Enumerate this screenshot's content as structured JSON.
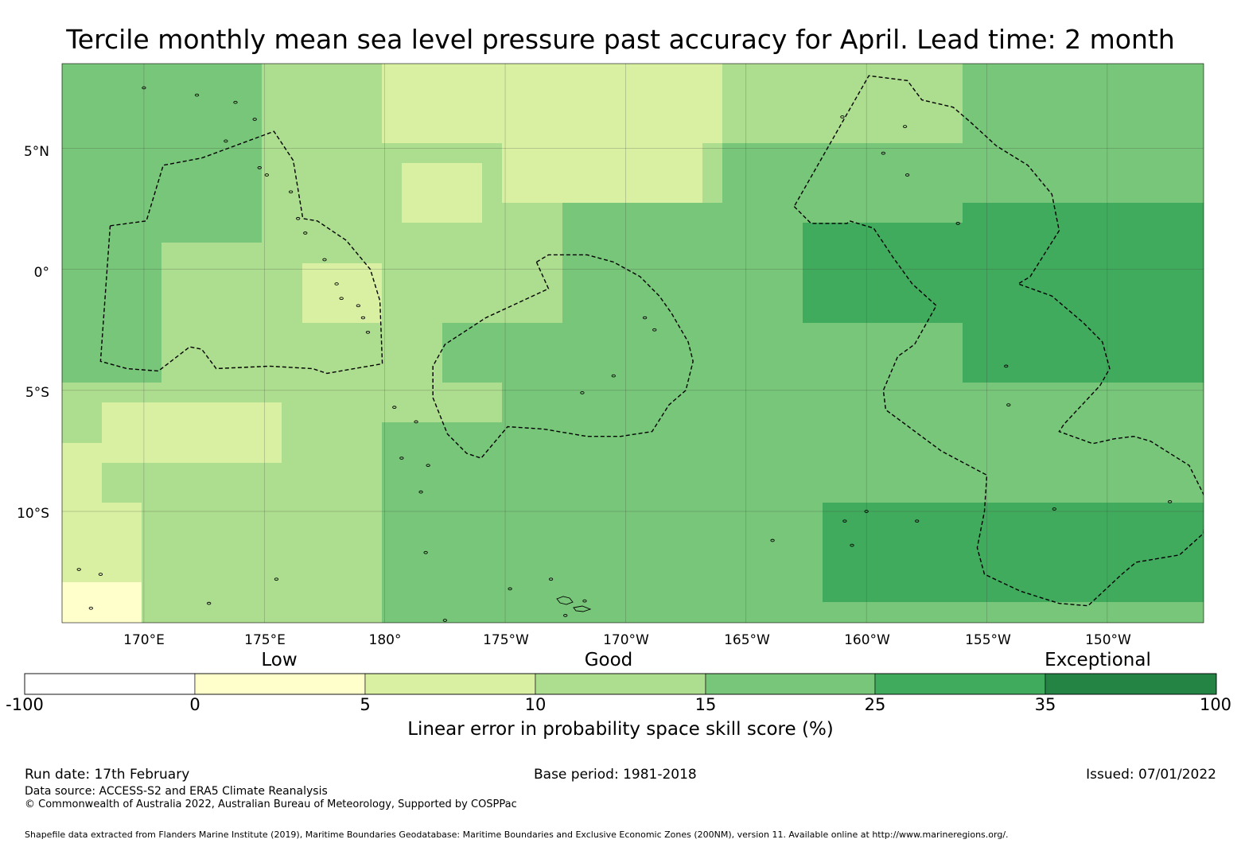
{
  "title": "Tercile monthly mean sea level pressure past accuracy for April. Lead time: 2 month",
  "map": {
    "lat_labels": [
      "5°N",
      "0°",
      "5°S",
      "10°S"
    ],
    "lon_labels": [
      "170°E",
      "175°E",
      "180°",
      "175°W",
      "170°W",
      "165°W",
      "160°W",
      "155°W",
      "150°W"
    ],
    "extent": {
      "lon_west": 166.6,
      "lon_east": 214.0,
      "lat_north": 8.5,
      "lat_south": -14.6
    }
  },
  "legend": {
    "categories": [
      "Low",
      "Good",
      "Exceptional"
    ],
    "ticks": [
      "-100",
      "0",
      "5",
      "10",
      "15",
      "25",
      "35",
      "100"
    ],
    "colors": [
      "#ffffff",
      "#ffffcc",
      "#d9f0a3",
      "#addd8e",
      "#78c679",
      "#41ab5d",
      "#238443"
    ],
    "title": "Linear error in probability space skill score (%)"
  },
  "footer": {
    "run_date": "Run date: 17th February",
    "base_period": "Base period: 1981-2018",
    "issued": "Issued: 07/01/2022",
    "data_source": "Data source: ACCESS-S2 and ERA5 Climate Reanalysis",
    "copyright": "© Commonwealth of Australia 2022, Australian Bureau of Meteorology, Supported by COSPPac",
    "shapefile": "Shapefile data extracted from Flanders Marine Institute (2019), Maritime Boundaries Geodatabase: Maritime Boundaries and Exclusive Economic Zones (200NM), version 11. Available online at http://www.marineregions.org/."
  }
}
